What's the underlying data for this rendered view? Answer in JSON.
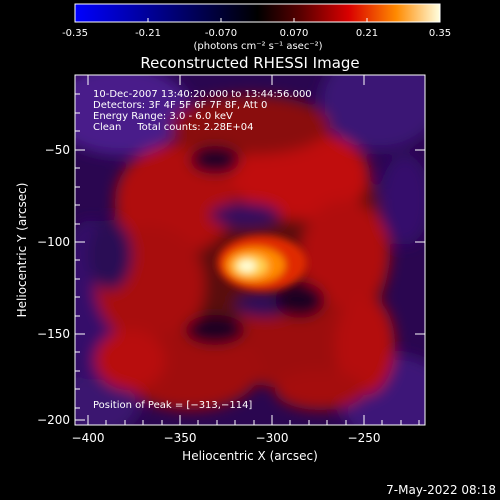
{
  "colorbar": {
    "tick_labels": [
      "-0.35",
      "-0.21",
      "-0.070",
      "0.070",
      "0.21",
      "0.35"
    ],
    "units_label": "(photons cm⁻² s⁻¹ asec⁻²)"
  },
  "plot": {
    "title": "Reconstructed RHESSI Image",
    "xlabel": "Heliocentric X (arcsec)",
    "ylabel": "Heliocentric Y (arcsec)",
    "x_ticks": [
      "−400",
      "−350",
      "−300",
      "−250"
    ],
    "y_ticks": [
      "−50",
      "−100",
      "−150",
      "−200"
    ],
    "info_lines": [
      "10-Dec-2007 13:40:20.000 to 13:44:56.000",
      "Detectors: 3F 4F 5F 6F 7F 8F, Att 0",
      "Energy Range: 3.0 - 6.0 keV",
      "Clean     Total counts: 2.28E+04"
    ],
    "peak_label": "Position of Peak = [−313,−114]"
  },
  "footer": {
    "timestamp": "7-May-2022 08:18"
  }
}
